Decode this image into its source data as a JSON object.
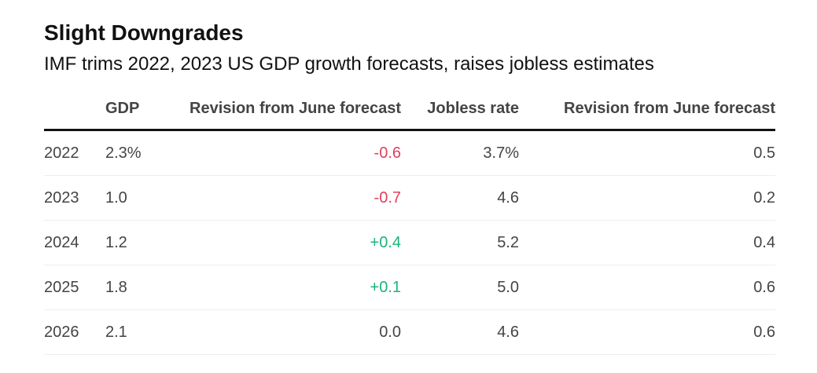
{
  "title": "Slight Downgrades",
  "subtitle": "IMF trims 2022, 2023 US GDP growth forecasts, raises jobless estimates",
  "colors": {
    "negative": "#e0405e",
    "positive": "#1bb37a",
    "neutral": "#444444"
  },
  "chart_data": {
    "type": "table",
    "columns": [
      "",
      "GDP",
      "Revision from June forecast",
      "Jobless rate",
      "Revision from June forecast"
    ],
    "rows": [
      {
        "year": "2022",
        "gdp": "2.3%",
        "gdp_revision": "-0.6",
        "jobless": "3.7%",
        "jobless_revision": "0.5"
      },
      {
        "year": "2023",
        "gdp": "1.0",
        "gdp_revision": "-0.7",
        "jobless": "4.6",
        "jobless_revision": "0.2"
      },
      {
        "year": "2024",
        "gdp": "1.2",
        "gdp_revision": "+0.4",
        "jobless": "5.2",
        "jobless_revision": "0.4"
      },
      {
        "year": "2025",
        "gdp": "1.8",
        "gdp_revision": "+0.1",
        "jobless": "5.0",
        "jobless_revision": "0.6"
      },
      {
        "year": "2026",
        "gdp": "2.1",
        "gdp_revision": "0.0",
        "jobless": "4.6",
        "jobless_revision": "0.6"
      }
    ]
  }
}
